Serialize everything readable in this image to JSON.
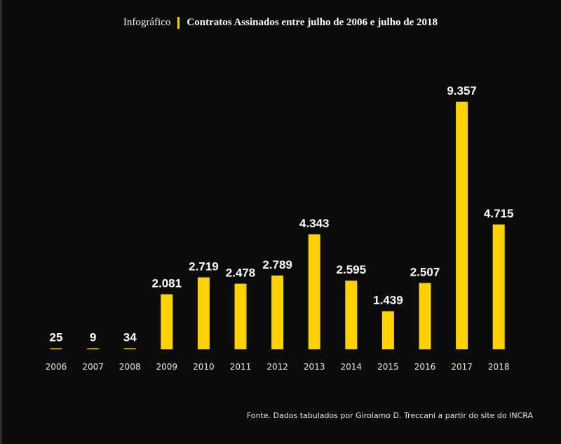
{
  "header": {
    "tag": "Infográfico",
    "title": "Contratos Assinados entre  julho de 2006 e julho de 2018"
  },
  "source": "Fonte. Dados tabulados por Girolamo D. Treccani a partir do site do INCRA",
  "colors": {
    "bar": "#FFD200",
    "background": "#0b0b0b",
    "text": "#ffffff"
  },
  "chart_data": {
    "type": "bar",
    "title": "Contratos Assinados entre  julho de 2006 e julho de 2018",
    "xlabel": "",
    "ylabel": "",
    "grid": false,
    "categories": [
      "2006",
      "2007",
      "2008",
      "2009",
      "2010",
      "2011",
      "2012",
      "2013",
      "2014",
      "2015",
      "2016",
      "2017",
      "2018"
    ],
    "values": [
      25,
      9,
      34,
      2081,
      2719,
      2478,
      2789,
      4343,
      2595,
      1439,
      2507,
      9357,
      4715
    ],
    "value_labels": [
      "25",
      "9",
      "34",
      "2.081",
      "2.719",
      "2.478",
      "2.789",
      "4.343",
      "2.595",
      "1.439",
      "2.507",
      "9.357",
      "4.715"
    ],
    "ylim": [
      0,
      9357
    ]
  }
}
